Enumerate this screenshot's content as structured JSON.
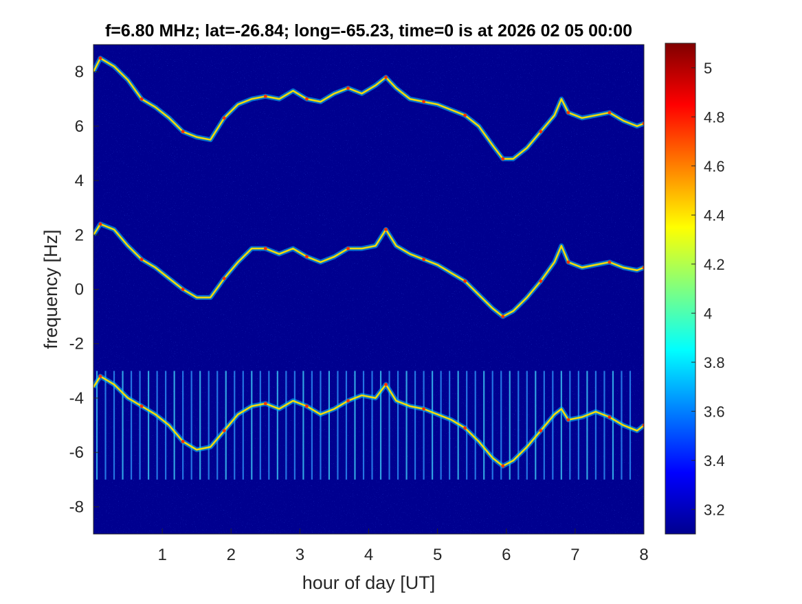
{
  "chart_data": {
    "type": "heatmap",
    "title": "f=6.80 MHz;  lat=-26.84; long=-65.23, time=0 is at 2026 02 05 00:00",
    "xlabel": "hour of day [UT]",
    "ylabel": "frequency [Hz]",
    "xlim": [
      0,
      8
    ],
    "ylim": [
      -9,
      9
    ],
    "xticks": [
      1,
      2,
      3,
      4,
      5,
      6,
      7,
      8
    ],
    "yticks": [
      -8,
      -6,
      -4,
      -2,
      0,
      2,
      4,
      6,
      8
    ],
    "colormap": "jet",
    "colorbar": {
      "clim": [
        3.1,
        5.1
      ],
      "ticks": [
        3.2,
        3.4,
        3.6,
        3.8,
        4,
        4.2,
        4.4,
        4.6,
        4.8,
        5
      ]
    },
    "background_color": "#00008f",
    "grid": false,
    "series": [
      {
        "x": [
          0.0,
          0.1,
          0.3,
          0.5,
          0.7,
          0.9,
          1.1,
          1.3,
          1.5,
          1.7,
          1.9,
          2.1,
          2.3,
          2.5,
          2.7,
          2.9,
          3.1,
          3.3,
          3.5,
          3.7,
          3.9,
          4.1,
          4.25,
          4.4,
          4.6,
          4.8,
          5.0,
          5.2,
          5.4,
          5.6,
          5.8,
          5.95,
          6.1,
          6.3,
          6.5,
          6.7,
          6.8,
          6.9,
          7.1,
          7.3,
          7.5,
          7.7,
          7.9,
          8.0
        ],
        "y": [
          8.0,
          8.5,
          8.2,
          7.7,
          7.0,
          6.7,
          6.3,
          5.8,
          5.6,
          5.5,
          6.3,
          6.8,
          7.0,
          7.1,
          7.0,
          7.3,
          7.0,
          6.9,
          7.2,
          7.4,
          7.2,
          7.5,
          7.8,
          7.4,
          7.0,
          6.9,
          6.8,
          6.6,
          6.4,
          6.0,
          5.3,
          4.8,
          4.8,
          5.2,
          5.8,
          6.4,
          7.0,
          6.5,
          6.3,
          6.4,
          6.5,
          6.2,
          6.0,
          6.1
        ]
      },
      {
        "x": [
          0.0,
          0.1,
          0.3,
          0.5,
          0.7,
          0.9,
          1.1,
          1.3,
          1.5,
          1.7,
          1.9,
          2.1,
          2.3,
          2.5,
          2.7,
          2.9,
          3.1,
          3.3,
          3.5,
          3.7,
          3.9,
          4.1,
          4.25,
          4.4,
          4.6,
          4.8,
          5.0,
          5.2,
          5.4,
          5.6,
          5.8,
          5.95,
          6.1,
          6.3,
          6.5,
          6.7,
          6.8,
          6.9,
          7.1,
          7.3,
          7.5,
          7.7,
          7.9,
          8.0
        ],
        "y": [
          2.0,
          2.4,
          2.2,
          1.6,
          1.1,
          0.8,
          0.4,
          0.0,
          -0.3,
          -0.3,
          0.4,
          1.0,
          1.5,
          1.5,
          1.3,
          1.5,
          1.2,
          1.0,
          1.2,
          1.5,
          1.5,
          1.6,
          2.2,
          1.6,
          1.3,
          1.1,
          0.9,
          0.6,
          0.3,
          -0.2,
          -0.7,
          -1.0,
          -0.8,
          -0.3,
          0.3,
          1.0,
          1.6,
          1.0,
          0.8,
          0.9,
          1.0,
          0.8,
          0.7,
          0.8
        ]
      },
      {
        "x": [
          0.0,
          0.1,
          0.3,
          0.5,
          0.7,
          0.9,
          1.1,
          1.3,
          1.5,
          1.7,
          1.9,
          2.1,
          2.3,
          2.5,
          2.7,
          2.9,
          3.1,
          3.3,
          3.5,
          3.7,
          3.9,
          4.1,
          4.25,
          4.4,
          4.6,
          4.8,
          5.0,
          5.2,
          5.4,
          5.6,
          5.8,
          5.95,
          6.1,
          6.3,
          6.5,
          6.7,
          6.8,
          6.9,
          7.1,
          7.3,
          7.5,
          7.7,
          7.9,
          8.0
        ],
        "y": [
          -3.6,
          -3.2,
          -3.5,
          -4.0,
          -4.3,
          -4.6,
          -5.0,
          -5.6,
          -5.9,
          -5.8,
          -5.2,
          -4.6,
          -4.3,
          -4.2,
          -4.4,
          -4.1,
          -4.3,
          -4.6,
          -4.4,
          -4.1,
          -3.9,
          -4.0,
          -3.5,
          -4.1,
          -4.3,
          -4.4,
          -4.6,
          -4.8,
          -5.1,
          -5.6,
          -6.2,
          -6.5,
          -6.3,
          -5.8,
          -5.2,
          -4.6,
          -4.4,
          -4.8,
          -4.7,
          -4.5,
          -4.7,
          -5.0,
          -5.2,
          -5.0
        ]
      }
    ],
    "vertical_stripes": {
      "x_start": 0.05,
      "x_step": 0.125,
      "x_end": 7.9,
      "y_range": [
        -7.0,
        -3.0
      ]
    }
  }
}
